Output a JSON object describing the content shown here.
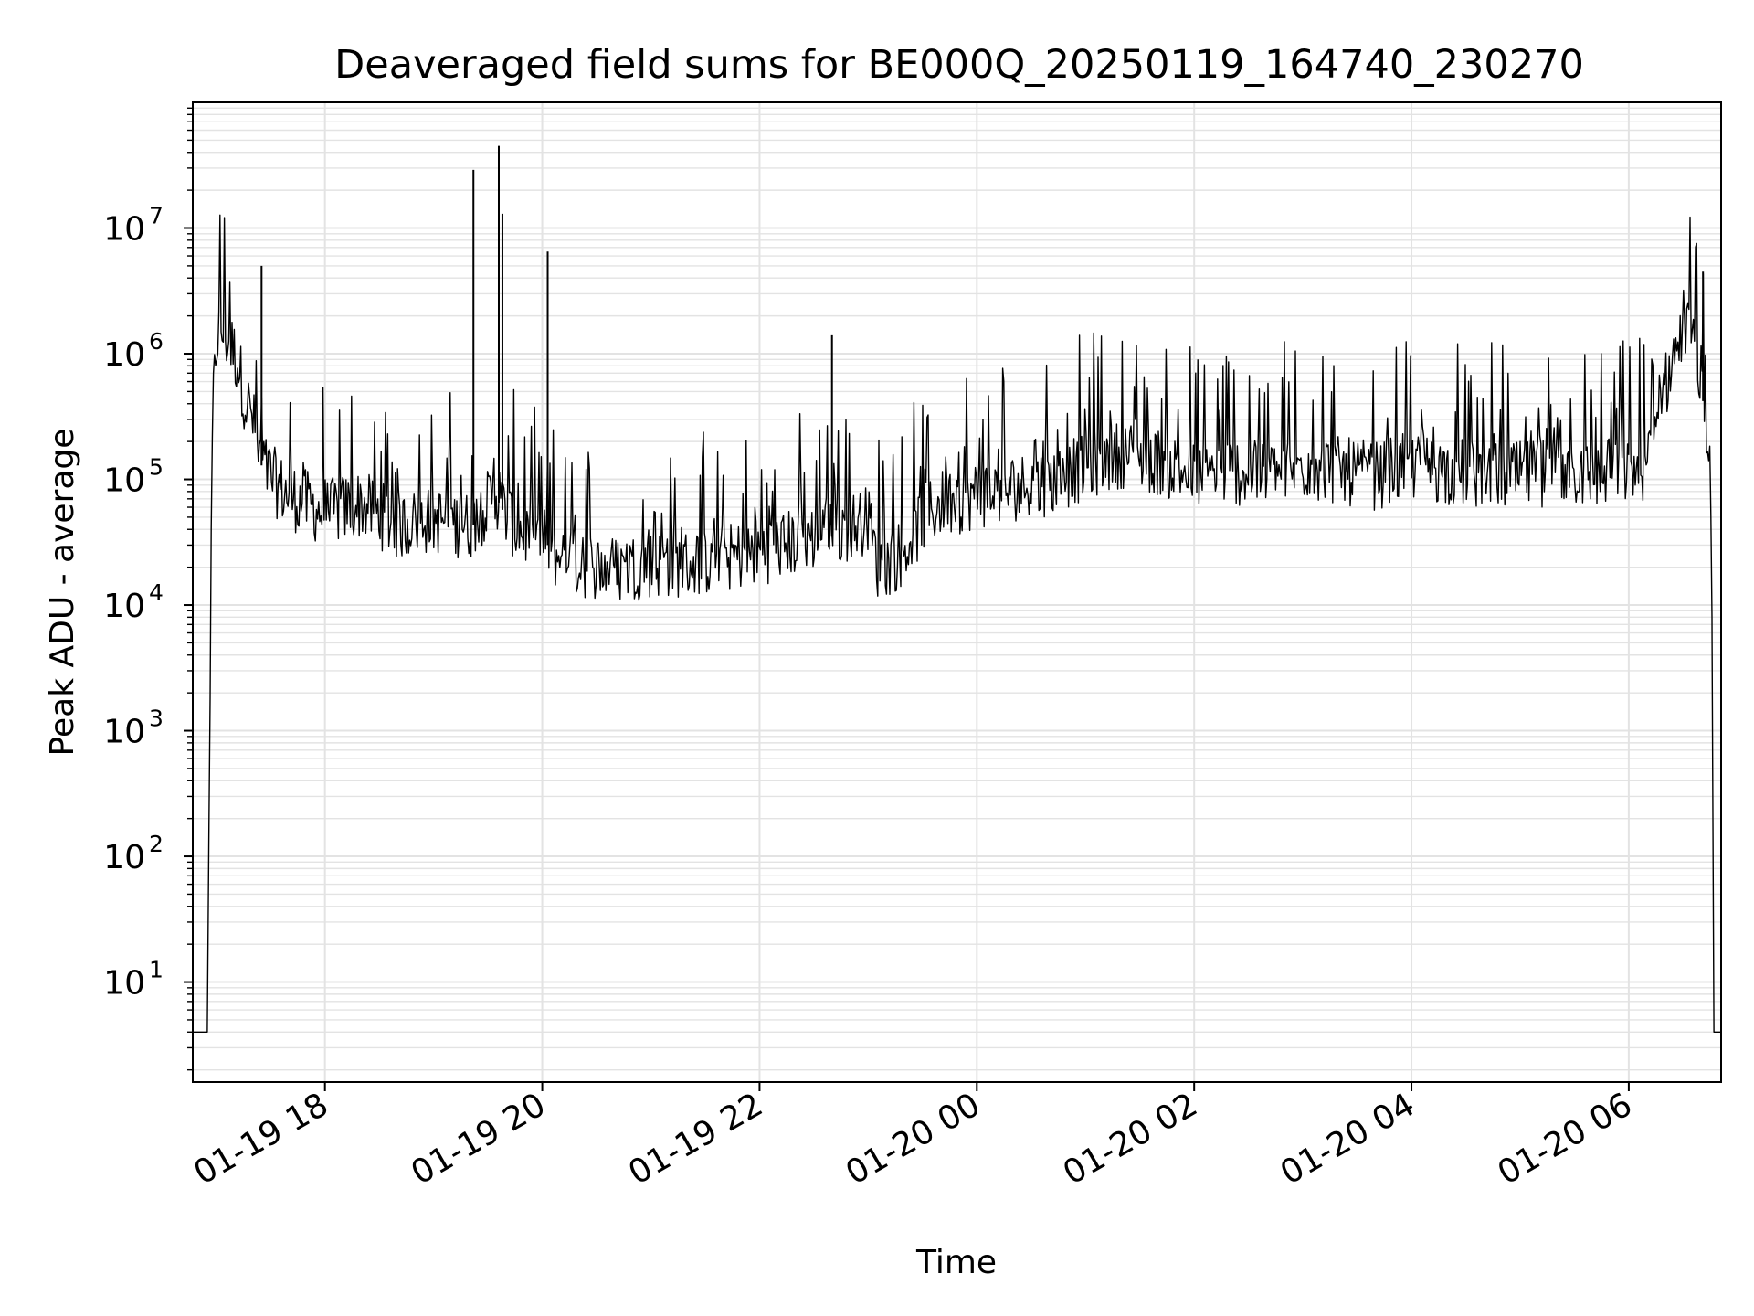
{
  "chart_data": {
    "type": "line",
    "title": "Deaveraged field sums for BE000Q_20250119_164740_230270",
    "xlabel": "Time",
    "ylabel": "Peak ADU - average",
    "yscale": "log",
    "ylim": [
      1.6,
      100000000
    ],
    "xlim": [
      "2025-01-19 16:47",
      "2025-01-20 06:51"
    ],
    "grid": true,
    "line_color": "#000000",
    "grid_color": "#e3e3e3",
    "x_ticks": [
      {
        "value": "2025-01-19 18:00",
        "label": "01-19 18"
      },
      {
        "value": "2025-01-19 20:00",
        "label": "01-19 20"
      },
      {
        "value": "2025-01-19 22:00",
        "label": "01-19 22"
      },
      {
        "value": "2025-01-20 00:00",
        "label": "01-20 00"
      },
      {
        "value": "2025-01-20 02:00",
        "label": "01-20 02"
      },
      {
        "value": "2025-01-20 04:00",
        "label": "01-20 04"
      },
      {
        "value": "2025-01-20 06:00",
        "label": "01-20 06"
      }
    ],
    "y_ticks": [
      {
        "value": 10,
        "base": "10",
        "exp": "1"
      },
      {
        "value": 100,
        "base": "10",
        "exp": "2"
      },
      {
        "value": 1000,
        "base": "10",
        "exp": "3"
      },
      {
        "value": 10000,
        "base": "10",
        "exp": "4"
      },
      {
        "value": 100000,
        "base": "10",
        "exp": "5"
      },
      {
        "value": 1000000,
        "base": "10",
        "exp": "6"
      },
      {
        "value": 10000000,
        "base": "10",
        "exp": "7"
      }
    ],
    "series": [
      {
        "x": [
          "2025-01-19 16:47",
          "2025-01-19 16:55",
          "2025-01-19 16:56",
          "2025-01-19 16:57",
          "2025-01-19 16:58",
          "2025-01-19 17:00",
          "2025-01-19 17:02",
          "2025-01-19 17:05",
          "2025-01-19 17:08",
          "2025-01-19 17:12",
          "2025-01-19 17:16",
          "2025-01-19 17:20",
          "2025-01-19 17:23",
          "2025-01-19 17:26",
          "2025-01-19 17:30",
          "2025-01-19 17:35",
          "2025-01-19 17:40",
          "2025-01-19 17:50",
          "2025-01-19 18:00",
          "2025-01-19 18:20",
          "2025-01-19 18:40",
          "2025-01-19 19:00",
          "2025-01-19 19:20",
          "2025-01-19 19:30",
          "2025-01-19 19:35",
          "2025-01-19 19:40",
          "2025-01-19 19:45",
          "2025-01-19 19:50",
          "2025-01-19 19:55",
          "2025-01-19 20:00",
          "2025-01-19 20:03",
          "2025-01-19 20:05",
          "2025-01-19 20:10",
          "2025-01-19 20:20",
          "2025-01-19 20:40",
          "2025-01-19 21:00",
          "2025-01-19 21:20",
          "2025-01-19 21:40",
          "2025-01-19 22:00",
          "2025-01-19 22:20",
          "2025-01-19 22:40",
          "2025-01-19 22:50",
          "2025-01-19 23:00",
          "2025-01-19 23:05",
          "2025-01-19 23:10",
          "2025-01-19 23:20",
          "2025-01-19 23:30",
          "2025-01-19 23:40",
          "2025-01-20 00:00",
          "2025-01-20 00:20",
          "2025-01-20 00:40",
          "2025-01-20 01:00",
          "2025-01-20 01:20",
          "2025-01-20 01:40",
          "2025-01-20 02:00",
          "2025-01-20 02:20",
          "2025-01-20 02:40",
          "2025-01-20 03:00",
          "2025-01-20 03:20",
          "2025-01-20 03:40",
          "2025-01-20 04:00",
          "2025-01-20 04:20",
          "2025-01-20 04:40",
          "2025-01-20 05:00",
          "2025-01-20 05:20",
          "2025-01-20 05:40",
          "2025-01-20 06:00",
          "2025-01-20 06:10",
          "2025-01-20 06:20",
          "2025-01-20 06:25",
          "2025-01-20 06:30",
          "2025-01-20 06:35",
          "2025-01-20 06:40",
          "2025-01-20 06:45",
          "2025-01-20 06:46",
          "2025-01-20 06:47",
          "2025-01-20 06:51"
        ],
        "y": [
          4,
          4,
          200,
          10000,
          300000,
          1200000,
          1500000,
          1300000,
          1100000,
          800000,
          400000,
          300000,
          150000,
          120000,
          100000,
          80000,
          70000,
          60000,
          50000,
          60000,
          40000,
          45000,
          40000,
          60000,
          70000,
          50000,
          40000,
          35000,
          33000,
          30000,
          30000,
          25000,
          22000,
          20000,
          18000,
          20000,
          20000,
          22000,
          25000,
          30000,
          35000,
          40000,
          45000,
          20000,
          20000,
          25000,
          45000,
          60000,
          70000,
          80000,
          90000,
          120000,
          150000,
          130000,
          100000,
          110000,
          100000,
          120000,
          110000,
          100000,
          120000,
          110000,
          100000,
          100000,
          110000,
          100000,
          110000,
          120000,
          500000,
          900000,
          1300000,
          1200000,
          600000,
          100000,
          5000,
          4,
          4
        ]
      }
    ],
    "annotations": [],
    "spikes": [
      {
        "x": "2025-01-19 17:25",
        "y": 5000000
      },
      {
        "x": "2025-01-19 19:22",
        "y": 29000000
      },
      {
        "x": "2025-01-19 19:36",
        "y": 45000000
      },
      {
        "x": "2025-01-19 19:38",
        "y": 13000000
      },
      {
        "x": "2025-01-19 20:03",
        "y": 6500000
      },
      {
        "x": "2025-01-19 22:40",
        "y": 1400000
      },
      {
        "x": "2025-01-20 06:41",
        "y": 4500000
      }
    ]
  }
}
